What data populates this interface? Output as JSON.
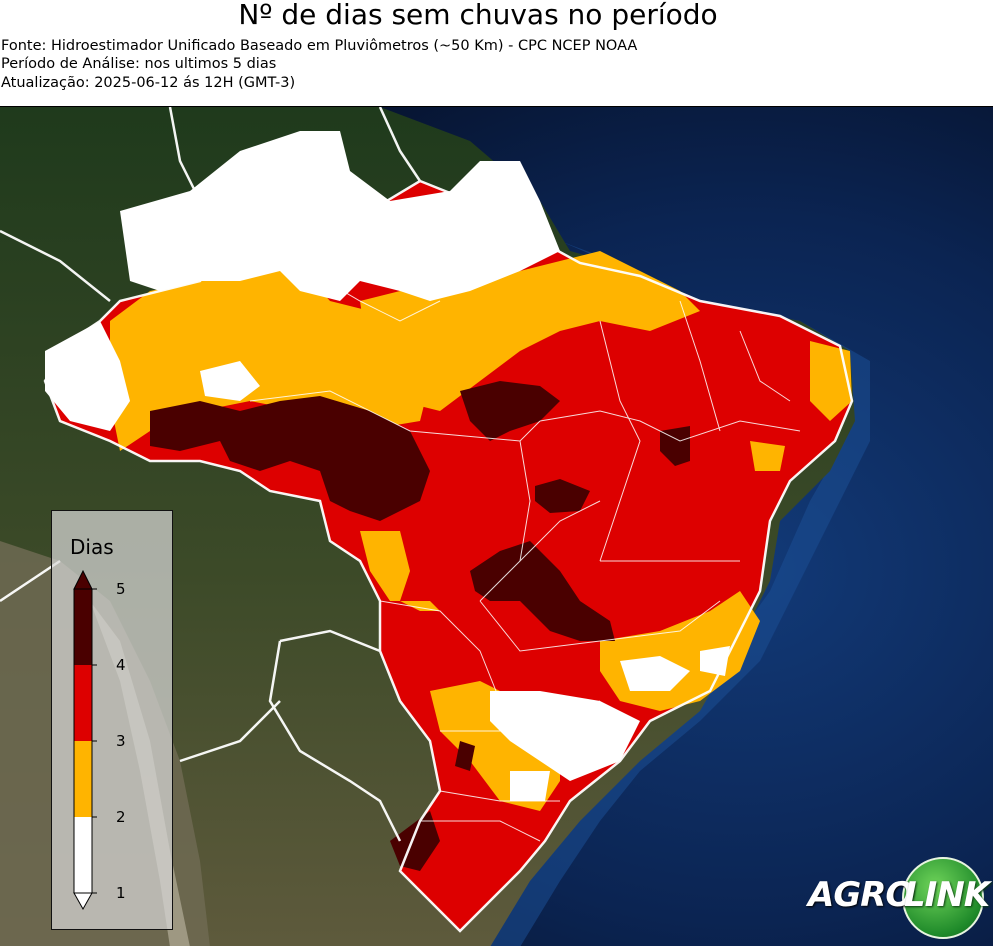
{
  "header": {
    "title": "Nº de dias sem chuvas no período",
    "source": "Fonte: Hidroestimador Unificado Baseado em Pluviômetros (~50 Km) - CPC NCEP NOAA",
    "period": "Período de Análise: nos ultimos 5 dias",
    "updated": "Atualização: 2025-06-12 ás 12H (GMT-3)"
  },
  "legend": {
    "title": "Dias",
    "ticks": [
      "5",
      "4",
      "3",
      "2",
      "1"
    ],
    "bins": [
      {
        "from": 4,
        "to": 5,
        "color": "#4a0000"
      },
      {
        "from": 3,
        "to": 4,
        "color": "#dd0000"
      },
      {
        "from": 2,
        "to": 3,
        "color": "#ffb400"
      },
      {
        "from": 1,
        "to": 2,
        "color": "#ffffff"
      }
    ]
  },
  "map": {
    "region": "Brasil",
    "ocean_color": "#0b1e45",
    "land_color": "#5a5a3a",
    "border_color": "#ffffff"
  },
  "logo": {
    "part1": "AGRO",
    "part2": "LINK"
  }
}
